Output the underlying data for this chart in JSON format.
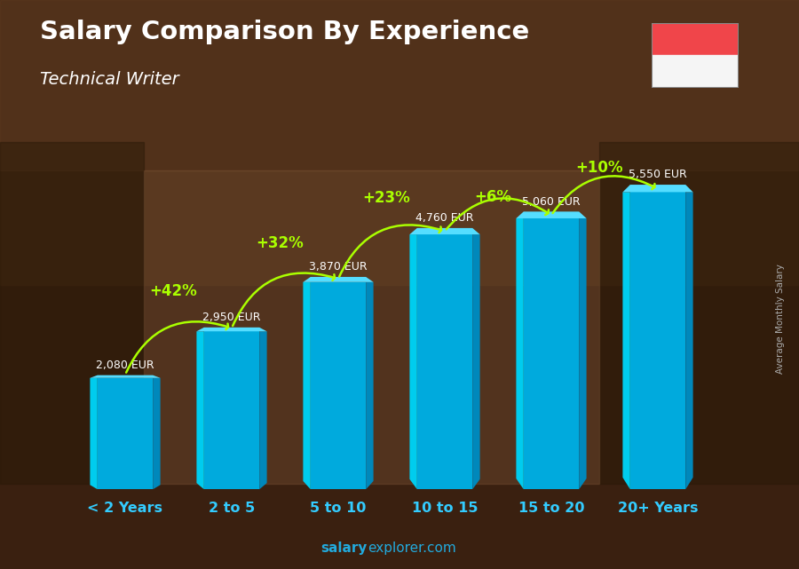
{
  "title": "Salary Comparison By Experience",
  "subtitle": "Technical Writer",
  "categories": [
    "< 2 Years",
    "2 to 5",
    "5 to 10",
    "10 to 15",
    "15 to 20",
    "20+ Years"
  ],
  "values": [
    2080,
    2950,
    3870,
    4760,
    5060,
    5550
  ],
  "value_labels": [
    "2,080 EUR",
    "2,950 EUR",
    "3,870 EUR",
    "4,760 EUR",
    "5,060 EUR",
    "5,550 EUR"
  ],
  "pct_changes": [
    "+42%",
    "+32%",
    "+23%",
    "+6%",
    "+10%"
  ],
  "bar_color_left": "#00CCEE",
  "bar_color_face": "#00AADD",
  "bar_color_right": "#0088BB",
  "bar_color_top": "#55DDFF",
  "bg_color": "#4a2f1a",
  "bg_color2": "#5a3820",
  "title_color": "#ffffff",
  "subtitle_color": "#ffffff",
  "value_label_color": "#ffffff",
  "pct_color": "#aaff00",
  "cat_label_color": "#33ccff",
  "watermark_bold_color": "#33ccff",
  "watermark_normal_color": "#33ccff",
  "side_label": "Average Monthly Salary",
  "side_label_color": "#aaaaaa",
  "ylim": [
    0,
    6800
  ],
  "flag_red": "#F0454A",
  "flag_white": "#F5F5F5",
  "watermark_salary_color": "#33aaff",
  "watermark_explorer_color": "#aaccdd"
}
